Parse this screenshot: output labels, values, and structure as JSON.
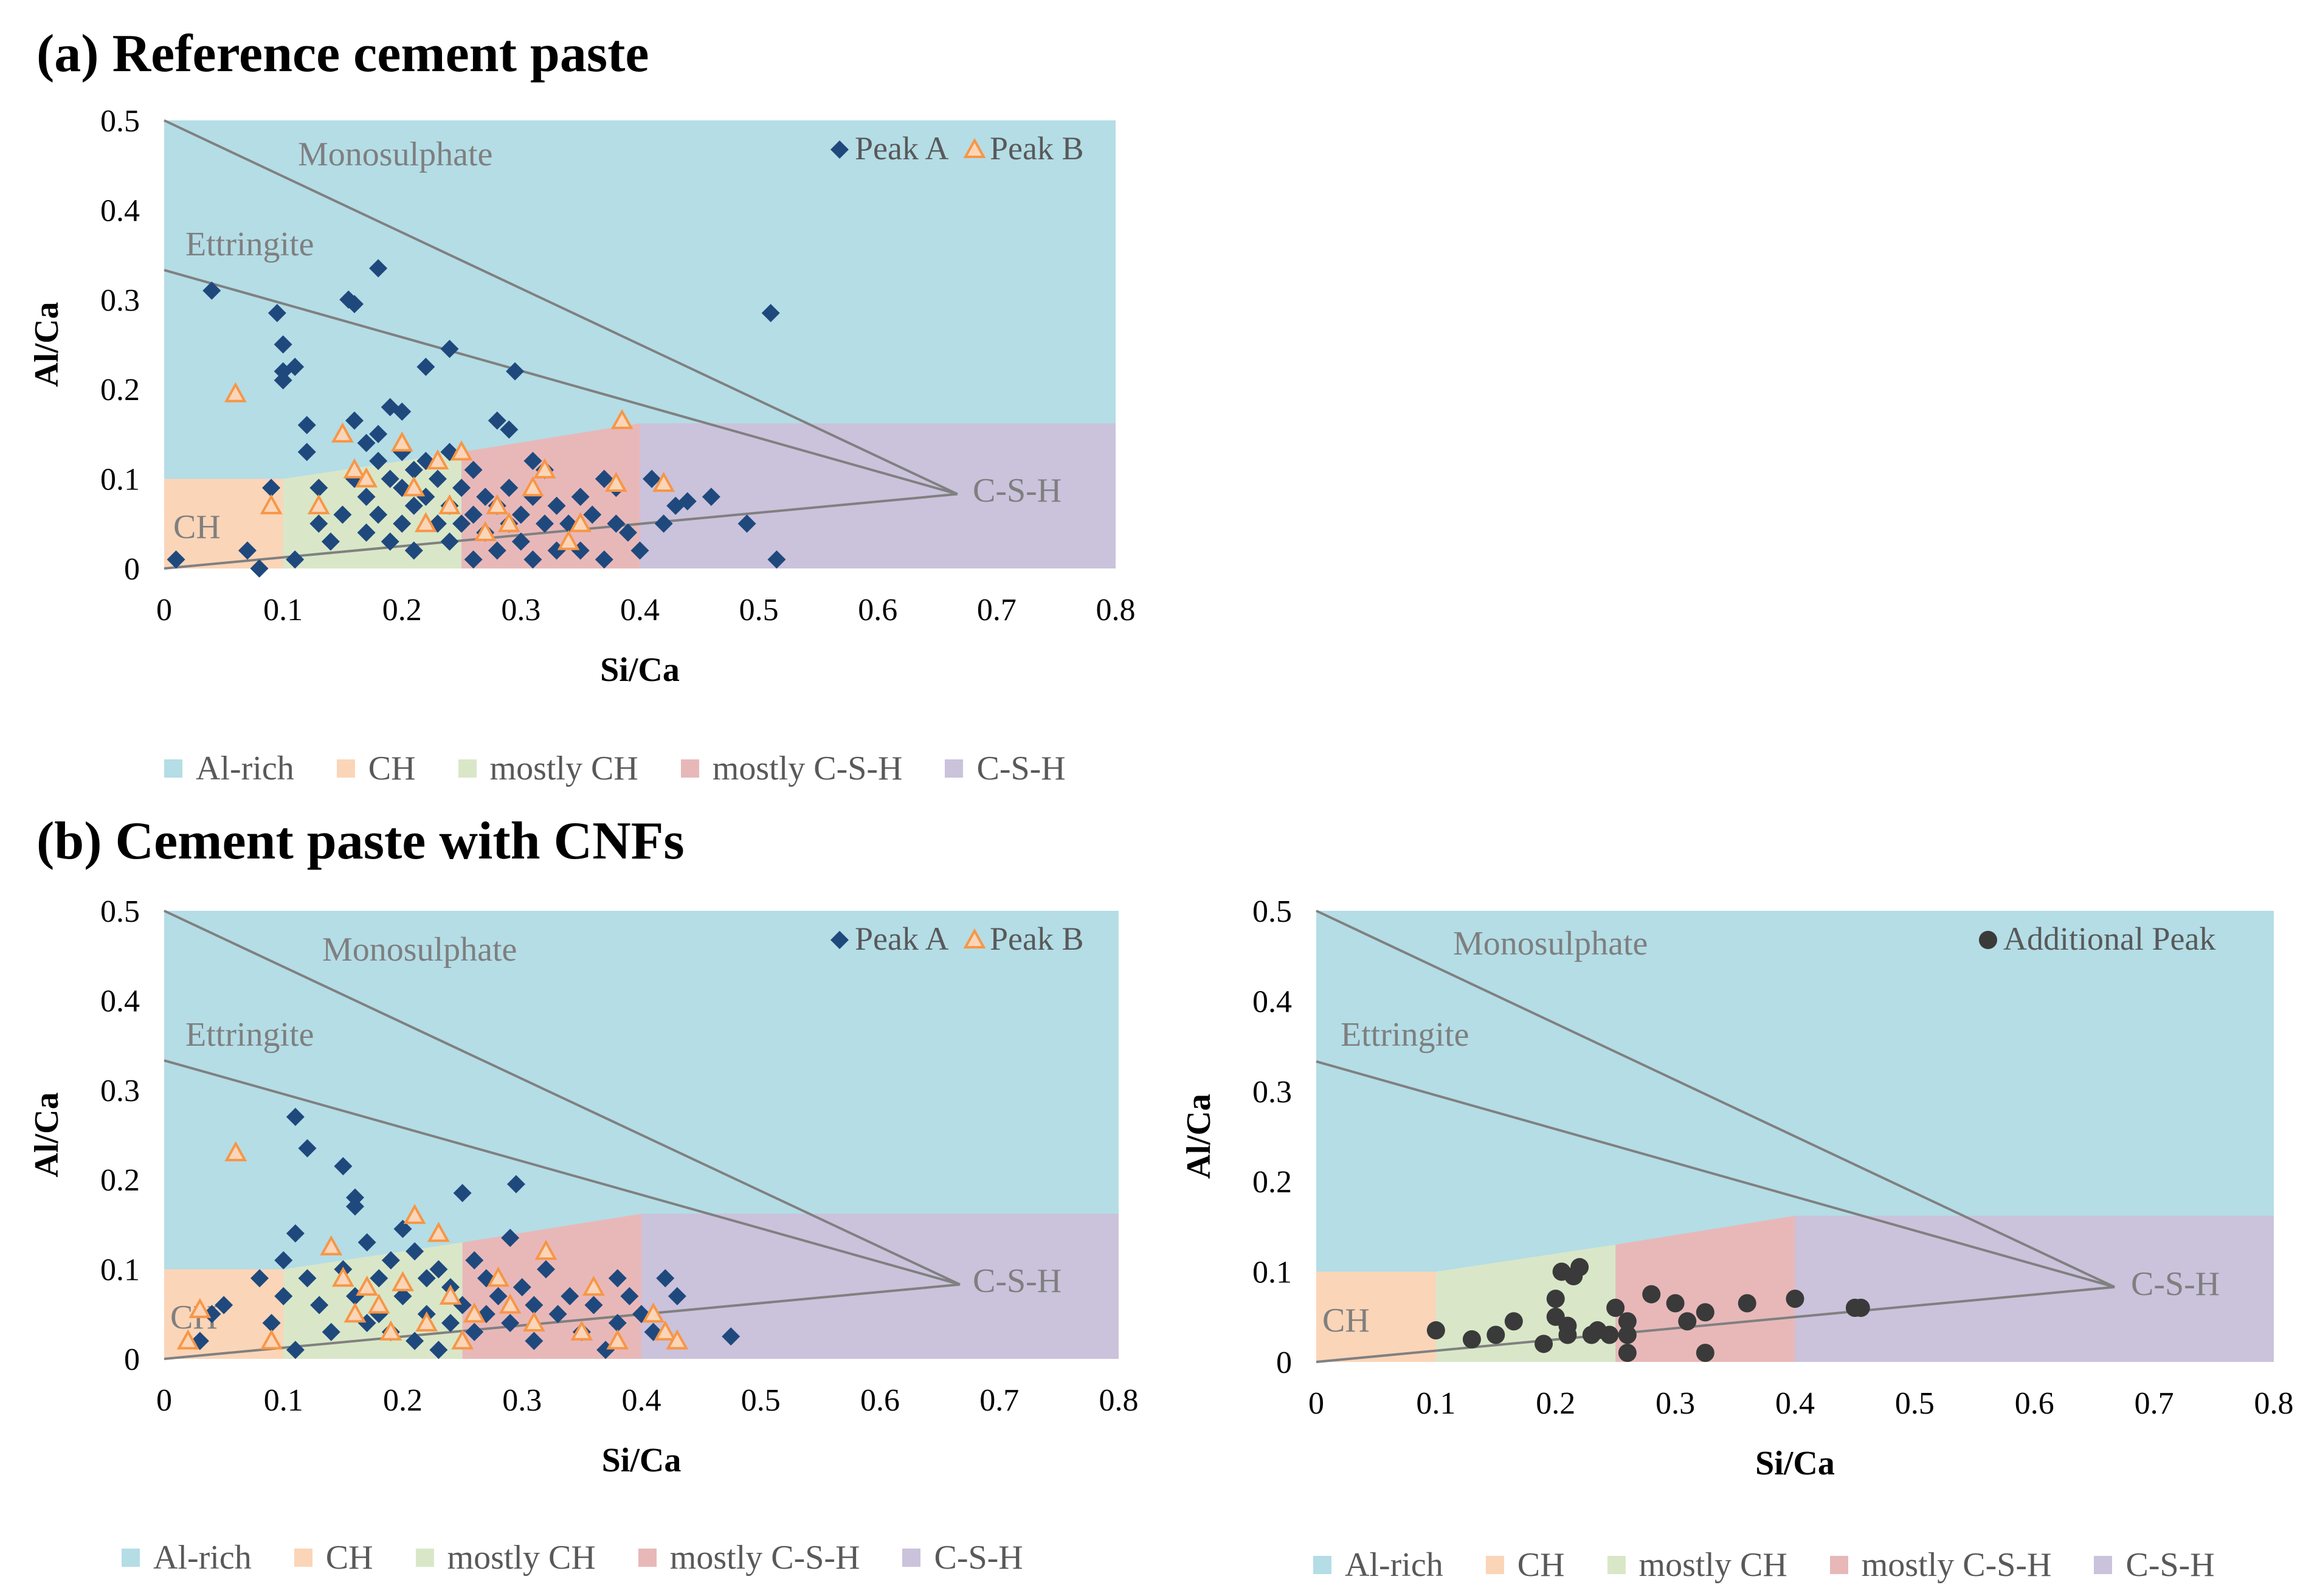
{
  "titles": {
    "a": "(a) Reference cement paste",
    "b": "(b) Cement paste with CNFs"
  },
  "region_legend": [
    {
      "label": "Al-rich",
      "color": "#b4dde6"
    },
    {
      "label": "CH",
      "color": "#fbd5b8"
    },
    {
      "label": "mostly CH",
      "color": "#d9e7c8"
    },
    {
      "label": "mostly C-S-H",
      "color": "#e8b8b9"
    },
    {
      "label": "C-S-H",
      "color": "#cbc2dc"
    }
  ],
  "reference_labels": {
    "monosulphate": "Monosulphate",
    "ettringite": "Ettringite",
    "csh": "C-S-H",
    "ch": "CH"
  },
  "colors": {
    "peak_a": "#1f497d",
    "peak_b": "#f79646",
    "additional": "#3a3a3a",
    "ref_line": "#808080",
    "axis_text": "#595959"
  },
  "chart_data": [
    {
      "id": "a",
      "type": "scatter",
      "title": "(a) Reference cement paste",
      "xlabel": "Si/Ca",
      "ylabel": "Al/Ca",
      "xlim": [
        0,
        0.8
      ],
      "ylim": [
        0,
        0.5
      ],
      "xticks": [
        "0",
        "0.1",
        "0.2",
        "0.3",
        "0.4",
        "0.5",
        "0.6",
        "0.7",
        "0.8"
      ],
      "yticks": [
        "0",
        "0.1",
        "0.2",
        "0.3",
        "0.4",
        "0.5"
      ],
      "legend_position": "top-right",
      "series": [
        {
          "name": "Peak A",
          "marker": "diamond",
          "color": "#1f497d",
          "points": [
            [
              0.01,
              0.01
            ],
            [
              0.04,
              0.31
            ],
            [
              0.07,
              0.02
            ],
            [
              0.08,
              0.0
            ],
            [
              0.09,
              0.09
            ],
            [
              0.095,
              0.285
            ],
            [
              0.1,
              0.25
            ],
            [
              0.1,
              0.22
            ],
            [
              0.11,
              0.225
            ],
            [
              0.1,
              0.21
            ],
            [
              0.11,
              0.01
            ],
            [
              0.12,
              0.16
            ],
            [
              0.12,
              0.13
            ],
            [
              0.13,
              0.09
            ],
            [
              0.13,
              0.05
            ],
            [
              0.14,
              0.03
            ],
            [
              0.15,
              0.06
            ],
            [
              0.155,
              0.3
            ],
            [
              0.16,
              0.295
            ],
            [
              0.16,
              0.165
            ],
            [
              0.16,
              0.1
            ],
            [
              0.17,
              0.14
            ],
            [
              0.17,
              0.08
            ],
            [
              0.17,
              0.04
            ],
            [
              0.18,
              0.335
            ],
            [
              0.18,
              0.15
            ],
            [
              0.18,
              0.12
            ],
            [
              0.18,
              0.06
            ],
            [
              0.19,
              0.18
            ],
            [
              0.19,
              0.1
            ],
            [
              0.19,
              0.03
            ],
            [
              0.2,
              0.175
            ],
            [
              0.2,
              0.13
            ],
            [
              0.2,
              0.09
            ],
            [
              0.2,
              0.05
            ],
            [
              0.21,
              0.11
            ],
            [
              0.21,
              0.07
            ],
            [
              0.21,
              0.02
            ],
            [
              0.22,
              0.225
            ],
            [
              0.22,
              0.12
            ],
            [
              0.22,
              0.08
            ],
            [
              0.23,
              0.1
            ],
            [
              0.23,
              0.05
            ],
            [
              0.24,
              0.245
            ],
            [
              0.24,
              0.13
            ],
            [
              0.24,
              0.07
            ],
            [
              0.24,
              0.03
            ],
            [
              0.25,
              0.09
            ],
            [
              0.25,
              0.05
            ],
            [
              0.26,
              0.11
            ],
            [
              0.26,
              0.06
            ],
            [
              0.26,
              0.01
            ],
            [
              0.27,
              0.08
            ],
            [
              0.27,
              0.04
            ],
            [
              0.28,
              0.165
            ],
            [
              0.28,
              0.07
            ],
            [
              0.28,
              0.02
            ],
            [
              0.29,
              0.155
            ],
            [
              0.29,
              0.09
            ],
            [
              0.29,
              0.05
            ],
            [
              0.295,
              0.22
            ],
            [
              0.3,
              0.06
            ],
            [
              0.3,
              0.03
            ],
            [
              0.31,
              0.12
            ],
            [
              0.31,
              0.08
            ],
            [
              0.31,
              0.01
            ],
            [
              0.32,
              0.11
            ],
            [
              0.32,
              0.05
            ],
            [
              0.33,
              0.07
            ],
            [
              0.33,
              0.02
            ],
            [
              0.34,
              0.05
            ],
            [
              0.35,
              0.08
            ],
            [
              0.35,
              0.02
            ],
            [
              0.36,
              0.06
            ],
            [
              0.37,
              0.1
            ],
            [
              0.37,
              0.01
            ],
            [
              0.38,
              0.09
            ],
            [
              0.38,
              0.05
            ],
            [
              0.39,
              0.04
            ],
            [
              0.4,
              0.02
            ],
            [
              0.41,
              0.1
            ],
            [
              0.42,
              0.05
            ],
            [
              0.43,
              0.07
            ],
            [
              0.44,
              0.075
            ],
            [
              0.46,
              0.08
            ],
            [
              0.49,
              0.05
            ],
            [
              0.51,
              0.285
            ],
            [
              0.515,
              0.01
            ]
          ]
        },
        {
          "name": "Peak B",
          "marker": "triangle",
          "color": "#f79646",
          "points": [
            [
              0.06,
              0.195
            ],
            [
              0.09,
              0.07
            ],
            [
              0.13,
              0.07
            ],
            [
              0.15,
              0.15
            ],
            [
              0.16,
              0.11
            ],
            [
              0.17,
              0.1
            ],
            [
              0.2,
              0.14
            ],
            [
              0.21,
              0.09
            ],
            [
              0.22,
              0.05
            ],
            [
              0.23,
              0.12
            ],
            [
              0.24,
              0.07
            ],
            [
              0.25,
              0.13
            ],
            [
              0.27,
              0.04
            ],
            [
              0.28,
              0.07
            ],
            [
              0.29,
              0.05
            ],
            [
              0.31,
              0.09
            ],
            [
              0.32,
              0.11
            ],
            [
              0.34,
              0.03
            ],
            [
              0.35,
              0.05
            ],
            [
              0.38,
              0.095
            ],
            [
              0.385,
              0.165
            ],
            [
              0.42,
              0.095
            ]
          ]
        }
      ]
    },
    {
      "id": "b-left",
      "type": "scatter",
      "title": "(b) Cement paste with CNFs",
      "xlabel": "Si/Ca",
      "ylabel": "Al/Ca",
      "xlim": [
        0,
        0.8
      ],
      "ylim": [
        0,
        0.5
      ],
      "xticks": [
        "0",
        "0.1",
        "0.2",
        "0.3",
        "0.4",
        "0.5",
        "0.6",
        "0.7",
        "0.8"
      ],
      "yticks": [
        "0",
        "0.1",
        "0.2",
        "0.3",
        "0.4",
        "0.5"
      ],
      "legend_position": "top-right",
      "series": [
        {
          "name": "Peak A",
          "marker": "diamond",
          "color": "#1f497d",
          "points": [
            [
              0.03,
              0.02
            ],
            [
              0.04,
              0.05
            ],
            [
              0.05,
              0.06
            ],
            [
              0.08,
              0.09
            ],
            [
              0.09,
              0.04
            ],
            [
              0.1,
              0.11
            ],
            [
              0.1,
              0.07
            ],
            [
              0.11,
              0.27
            ],
            [
              0.11,
              0.14
            ],
            [
              0.11,
              0.01
            ],
            [
              0.12,
              0.235
            ],
            [
              0.12,
              0.09
            ],
            [
              0.13,
              0.06
            ],
            [
              0.14,
              0.03
            ],
            [
              0.15,
              0.215
            ],
            [
              0.15,
              0.1
            ],
            [
              0.16,
              0.18
            ],
            [
              0.16,
              0.17
            ],
            [
              0.16,
              0.07
            ],
            [
              0.17,
              0.13
            ],
            [
              0.17,
              0.04
            ],
            [
              0.18,
              0.09
            ],
            [
              0.18,
              0.05
            ],
            [
              0.19,
              0.11
            ],
            [
              0.19,
              0.03
            ],
            [
              0.2,
              0.145
            ],
            [
              0.2,
              0.07
            ],
            [
              0.21,
              0.12
            ],
            [
              0.21,
              0.02
            ],
            [
              0.22,
              0.09
            ],
            [
              0.22,
              0.05
            ],
            [
              0.23,
              0.1
            ],
            [
              0.23,
              0.01
            ],
            [
              0.24,
              0.08
            ],
            [
              0.24,
              0.04
            ],
            [
              0.25,
              0.185
            ],
            [
              0.25,
              0.06
            ],
            [
              0.26,
              0.11
            ],
            [
              0.26,
              0.03
            ],
            [
              0.27,
              0.09
            ],
            [
              0.27,
              0.05
            ],
            [
              0.28,
              0.07
            ],
            [
              0.29,
              0.135
            ],
            [
              0.29,
              0.04
            ],
            [
              0.295,
              0.195
            ],
            [
              0.3,
              0.08
            ],
            [
              0.31,
              0.06
            ],
            [
              0.31,
              0.02
            ],
            [
              0.32,
              0.1
            ],
            [
              0.33,
              0.05
            ],
            [
              0.34,
              0.07
            ],
            [
              0.35,
              0.03
            ],
            [
              0.36,
              0.06
            ],
            [
              0.37,
              0.01
            ],
            [
              0.38,
              0.09
            ],
            [
              0.38,
              0.04
            ],
            [
              0.39,
              0.07
            ],
            [
              0.4,
              0.05
            ],
            [
              0.41,
              0.03
            ],
            [
              0.42,
              0.09
            ],
            [
              0.43,
              0.07
            ],
            [
              0.475,
              0.025
            ]
          ]
        },
        {
          "name": "Peak B",
          "marker": "triangle",
          "color": "#f79646",
          "points": [
            [
              0.02,
              0.02
            ],
            [
              0.03,
              0.055
            ],
            [
              0.06,
              0.23
            ],
            [
              0.09,
              0.02
            ],
            [
              0.14,
              0.125
            ],
            [
              0.15,
              0.09
            ],
            [
              0.16,
              0.05
            ],
            [
              0.17,
              0.08
            ],
            [
              0.18,
              0.06
            ],
            [
              0.19,
              0.03
            ],
            [
              0.2,
              0.085
            ],
            [
              0.21,
              0.16
            ],
            [
              0.22,
              0.04
            ],
            [
              0.23,
              0.14
            ],
            [
              0.24,
              0.07
            ],
            [
              0.25,
              0.02
            ],
            [
              0.26,
              0.05
            ],
            [
              0.28,
              0.09
            ],
            [
              0.29,
              0.06
            ],
            [
              0.31,
              0.04
            ],
            [
              0.32,
              0.12
            ],
            [
              0.35,
              0.03
            ],
            [
              0.36,
              0.08
            ],
            [
              0.38,
              0.02
            ],
            [
              0.41,
              0.05
            ],
            [
              0.42,
              0.03
            ],
            [
              0.43,
              0.02
            ]
          ]
        }
      ]
    },
    {
      "id": "b-right",
      "type": "scatter",
      "xlabel": "Si/Ca",
      "ylabel": "Al/Ca",
      "xlim": [
        0,
        0.8
      ],
      "ylim": [
        0,
        0.5
      ],
      "xticks": [
        "0",
        "0.1",
        "0.2",
        "0.3",
        "0.4",
        "0.5",
        "0.6",
        "0.7",
        "0.8"
      ],
      "yticks": [
        "0",
        "0.1",
        "0.2",
        "0.3",
        "0.4",
        "0.5"
      ],
      "legend_position": "top-right",
      "series": [
        {
          "name": "Additional Peak",
          "marker": "circle",
          "color": "#3a3a3a",
          "points": [
            [
              0.1,
              0.035
            ],
            [
              0.13,
              0.025
            ],
            [
              0.15,
              0.03
            ],
            [
              0.165,
              0.045
            ],
            [
              0.19,
              0.02
            ],
            [
              0.2,
              0.07
            ],
            [
              0.2,
              0.05
            ],
            [
              0.205,
              0.1
            ],
            [
              0.21,
              0.04
            ],
            [
              0.21,
              0.03
            ],
            [
              0.215,
              0.095
            ],
            [
              0.22,
              0.105
            ],
            [
              0.23,
              0.03
            ],
            [
              0.235,
              0.035
            ],
            [
              0.245,
              0.03
            ],
            [
              0.25,
              0.06
            ],
            [
              0.26,
              0.045
            ],
            [
              0.26,
              0.03
            ],
            [
              0.26,
              0.01
            ],
            [
              0.28,
              0.075
            ],
            [
              0.3,
              0.065
            ],
            [
              0.31,
              0.045
            ],
            [
              0.325,
              0.055
            ],
            [
              0.325,
              0.01
            ],
            [
              0.36,
              0.065
            ],
            [
              0.4,
              0.07
            ],
            [
              0.45,
              0.06
            ],
            [
              0.455,
              0.06
            ]
          ]
        }
      ]
    }
  ]
}
